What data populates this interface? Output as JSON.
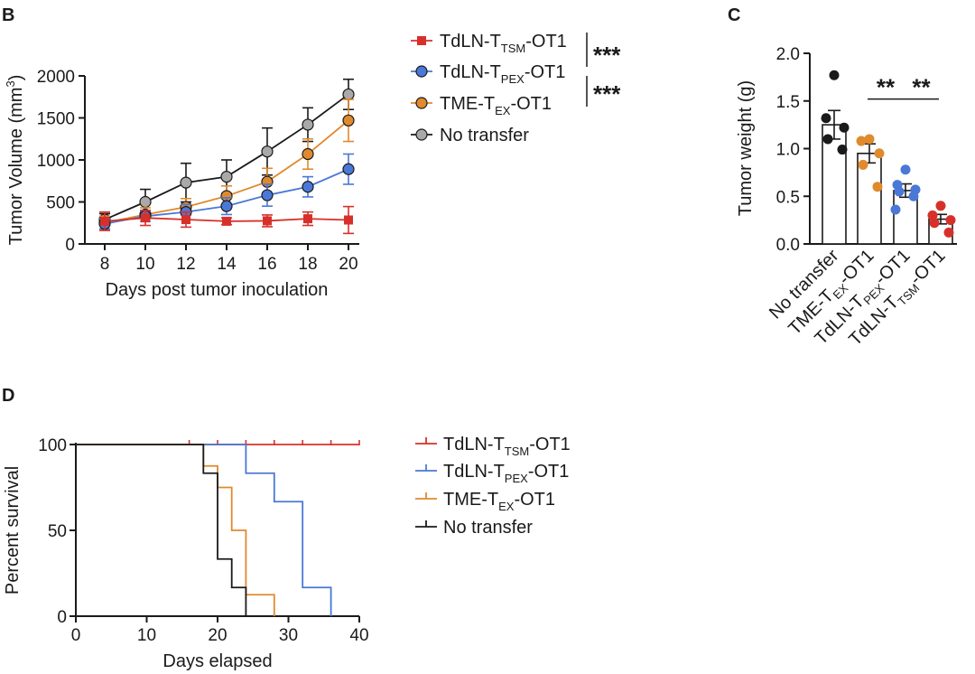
{
  "colors": {
    "tsm": "#d7302a",
    "pex": "#4a78d6",
    "tex": "#e08a2e",
    "none_fill": "#a9a9a9",
    "none_line": "#1a1a1a",
    "black": "#1a1a1a"
  },
  "chart_data": [
    {
      "panel": "B",
      "type": "line",
      "title": "",
      "xlabel": "Days post tumor inoculation",
      "ylabel": "Tumor Volume (mm³)",
      "ylabel_parts": {
        "main": "Tumor Volume (mm",
        "sup": "3",
        "end": ")"
      },
      "x": [
        8,
        10,
        12,
        14,
        16,
        18,
        20
      ],
      "x_ticks": [
        "8",
        "10",
        "12",
        "14",
        "16",
        "18",
        "20"
      ],
      "y_ticks": [
        "0",
        "500",
        "1000",
        "1500",
        "2000"
      ],
      "y_tick_values": [
        0,
        500,
        1000,
        1500,
        2000
      ],
      "ylim": [
        0,
        2000
      ],
      "series": [
        {
          "key": "tsm",
          "marker": "square",
          "label": {
            "main": "TdLN-T",
            "sub": "TSM",
            "end": "-OT1"
          },
          "values": [
            270,
            310,
            290,
            270,
            275,
            300,
            285
          ],
          "errors": [
            110,
            90,
            90,
            40,
            70,
            80,
            160
          ]
        },
        {
          "key": "pex",
          "marker": "circle",
          "label": {
            "main": "TdLN-T",
            "sub": "PEX",
            "end": "-OT1"
          },
          "values": [
            240,
            330,
            380,
            450,
            580,
            680,
            890
          ],
          "errors": [
            60,
            60,
            90,
            100,
            130,
            120,
            180
          ]
        },
        {
          "key": "tex",
          "marker": "circle",
          "label": {
            "main": "TME-T",
            "sub": "EX",
            "end": "-OT1"
          },
          "values": [
            250,
            350,
            440,
            570,
            740,
            1070,
            1470
          ],
          "errors": [
            80,
            80,
            100,
            120,
            160,
            180,
            250
          ]
        },
        {
          "key": "none",
          "marker": "circle",
          "label": {
            "main": "No transfer",
            "sub": "",
            "end": ""
          },
          "values": [
            290,
            500,
            730,
            800,
            1100,
            1420,
            1780
          ],
          "errors": [
            70,
            150,
            230,
            200,
            280,
            200,
            180
          ]
        }
      ],
      "significance": [
        "***",
        "***"
      ]
    },
    {
      "panel": "C",
      "type": "bar",
      "title": "",
      "xlabel": "",
      "ylabel": "Tumor weight (g)",
      "ylim": [
        0,
        2.0
      ],
      "y_ticks": [
        "0.0",
        "0.5",
        "1.0",
        "1.5",
        "2.0"
      ],
      "y_tick_values": [
        0,
        0.5,
        1.0,
        1.5,
        2.0
      ],
      "categories": [
        {
          "main": "No transfer",
          "sub": "",
          "end": ""
        },
        {
          "main": "TME-T",
          "sub": "EX",
          "end": "-OT1"
        },
        {
          "main": "TdLN-T",
          "sub": "PEX",
          "end": "-OT1"
        },
        {
          "main": "TdLN-T",
          "sub": "TSM",
          "end": "-OT1"
        }
      ],
      "color_keys": [
        "none",
        "tex",
        "pex",
        "tsm"
      ],
      "values": [
        1.25,
        0.95,
        0.56,
        0.26
      ],
      "errors": [
        0.15,
        0.1,
        0.07,
        0.05
      ],
      "points": [
        [
          1.77,
          1.32,
          1.22,
          1.1,
          0.99
        ],
        [
          1.1,
          1.08,
          0.95,
          0.83,
          0.6
        ],
        [
          0.78,
          0.62,
          0.57,
          0.55,
          0.5,
          0.36
        ],
        [
          0.4,
          0.3,
          0.25,
          0.22,
          0.12
        ]
      ],
      "significance": [
        {
          "from": 1,
          "to": 2,
          "text": "**",
          "y": 1.52
        },
        {
          "from": 2,
          "to": 3,
          "text": "**",
          "y": 1.52
        }
      ]
    },
    {
      "panel": "D",
      "type": "line",
      "subtype": "kaplan-meier",
      "title": "",
      "xlabel": "Days elapsed",
      "ylabel": "Percent survival",
      "xlim": [
        0,
        40
      ],
      "ylim": [
        0,
        100
      ],
      "x_ticks": [
        "0",
        "10",
        "20",
        "30",
        "40"
      ],
      "x_tick_values": [
        0,
        10,
        20,
        30,
        40
      ],
      "y_ticks": [
        "0",
        "50",
        "100"
      ],
      "y_tick_values": [
        0,
        50,
        100
      ],
      "series": [
        {
          "key": "tsm",
          "label": {
            "main": "TdLN-T",
            "sub": "TSM",
            "end": "-OT1"
          },
          "steps": [
            [
              0,
              100
            ],
            [
              40,
              100
            ]
          ],
          "censored": [
            16,
            20,
            24,
            28,
            32,
            36,
            40
          ]
        },
        {
          "key": "pex",
          "label": {
            "main": "TdLN-T",
            "sub": "PEX",
            "end": "-OT1"
          },
          "steps": [
            [
              0,
              100
            ],
            [
              24,
              83.3
            ],
            [
              28,
              66.7
            ],
            [
              32,
              16.7
            ],
            [
              36,
              0
            ]
          ],
          "censored": []
        },
        {
          "key": "tex",
          "label": {
            "main": "TME-T",
            "sub": "EX",
            "end": "-OT1"
          },
          "steps": [
            [
              0,
              100
            ],
            [
              18,
              87.5
            ],
            [
              20,
              75
            ],
            [
              22,
              50
            ],
            [
              24,
              12.5
            ],
            [
              28,
              0
            ]
          ],
          "censored": []
        },
        {
          "key": "none",
          "label": {
            "main": "No transfer",
            "sub": "",
            "end": ""
          },
          "steps": [
            [
              0,
              100
            ],
            [
              18,
              83.3
            ],
            [
              20,
              33.3
            ],
            [
              22,
              16.7
            ],
            [
              24,
              0
            ]
          ],
          "censored": []
        }
      ]
    }
  ],
  "panel_letters": [
    "B",
    "C",
    "D"
  ]
}
